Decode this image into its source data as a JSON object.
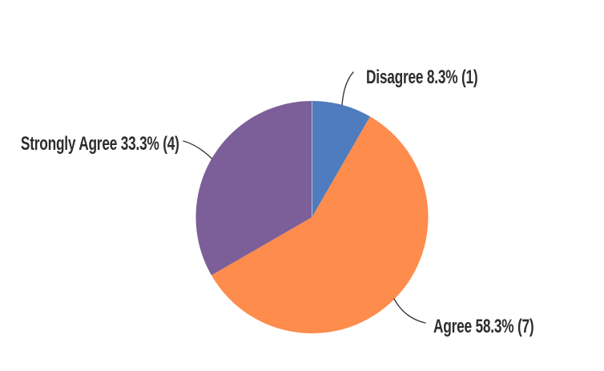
{
  "chart_data": {
    "type": "pie",
    "title": "",
    "legend_position": "none",
    "start_angle_deg": 0,
    "direction": "clockwise",
    "slices": [
      {
        "label": "Disagree",
        "percent": 8.3,
        "count": 1,
        "color": "#4e7cbe",
        "display": "Disagree 8.3% (1)"
      },
      {
        "label": "Agree",
        "percent": 58.3,
        "count": 7,
        "color": "#fd8c4d",
        "display": "Agree 58.3% (7)"
      },
      {
        "label": "Strongly Agree",
        "percent": 33.3,
        "count": 4,
        "color": "#7c5f99",
        "display": "Strongly Agree 33.3% (4)"
      }
    ],
    "label_line_color": "#3c3c3c",
    "label_text_color": "#2d2d2d",
    "background_color": "#ffffff"
  }
}
